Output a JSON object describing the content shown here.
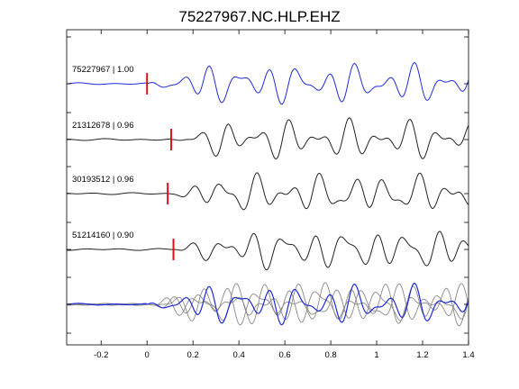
{
  "chart_data": {
    "type": "line",
    "title": "75227967.NC.HLP.EHZ",
    "xlim": [
      -0.35,
      1.4
    ],
    "x_ticks": [
      "-0.2",
      "0",
      "0.2",
      "0.4",
      "0.6",
      "0.8",
      "1",
      "1.2",
      "1.4"
    ],
    "x_tick_values": [
      -0.2,
      0,
      0.2,
      0.4,
      0.6,
      0.8,
      1.0,
      1.2,
      1.4
    ],
    "grid": false,
    "colors": {
      "master": "#1f2bd6",
      "other": "#222222",
      "pick": "#e0101a",
      "overlay": "#888888"
    },
    "series": [
      {
        "name": "75227967",
        "cc": "1.00",
        "label": "75227967 | 1.00",
        "pick_x": 0.0,
        "color": "master"
      },
      {
        "name": "21312678",
        "cc": "0.96",
        "label": "21312678 | 0.96",
        "pick_x": 0.105,
        "color": "other"
      },
      {
        "name": "30193512",
        "cc": "0.96",
        "label": "30193512 | 0.96",
        "pick_x": 0.09,
        "color": "other"
      },
      {
        "name": "51214160",
        "cc": "0.90",
        "label": "51214160 | 0.90",
        "pick_x": 0.115,
        "color": "other"
      }
    ],
    "stack_note": "bottom row overlays all traces aligned"
  }
}
